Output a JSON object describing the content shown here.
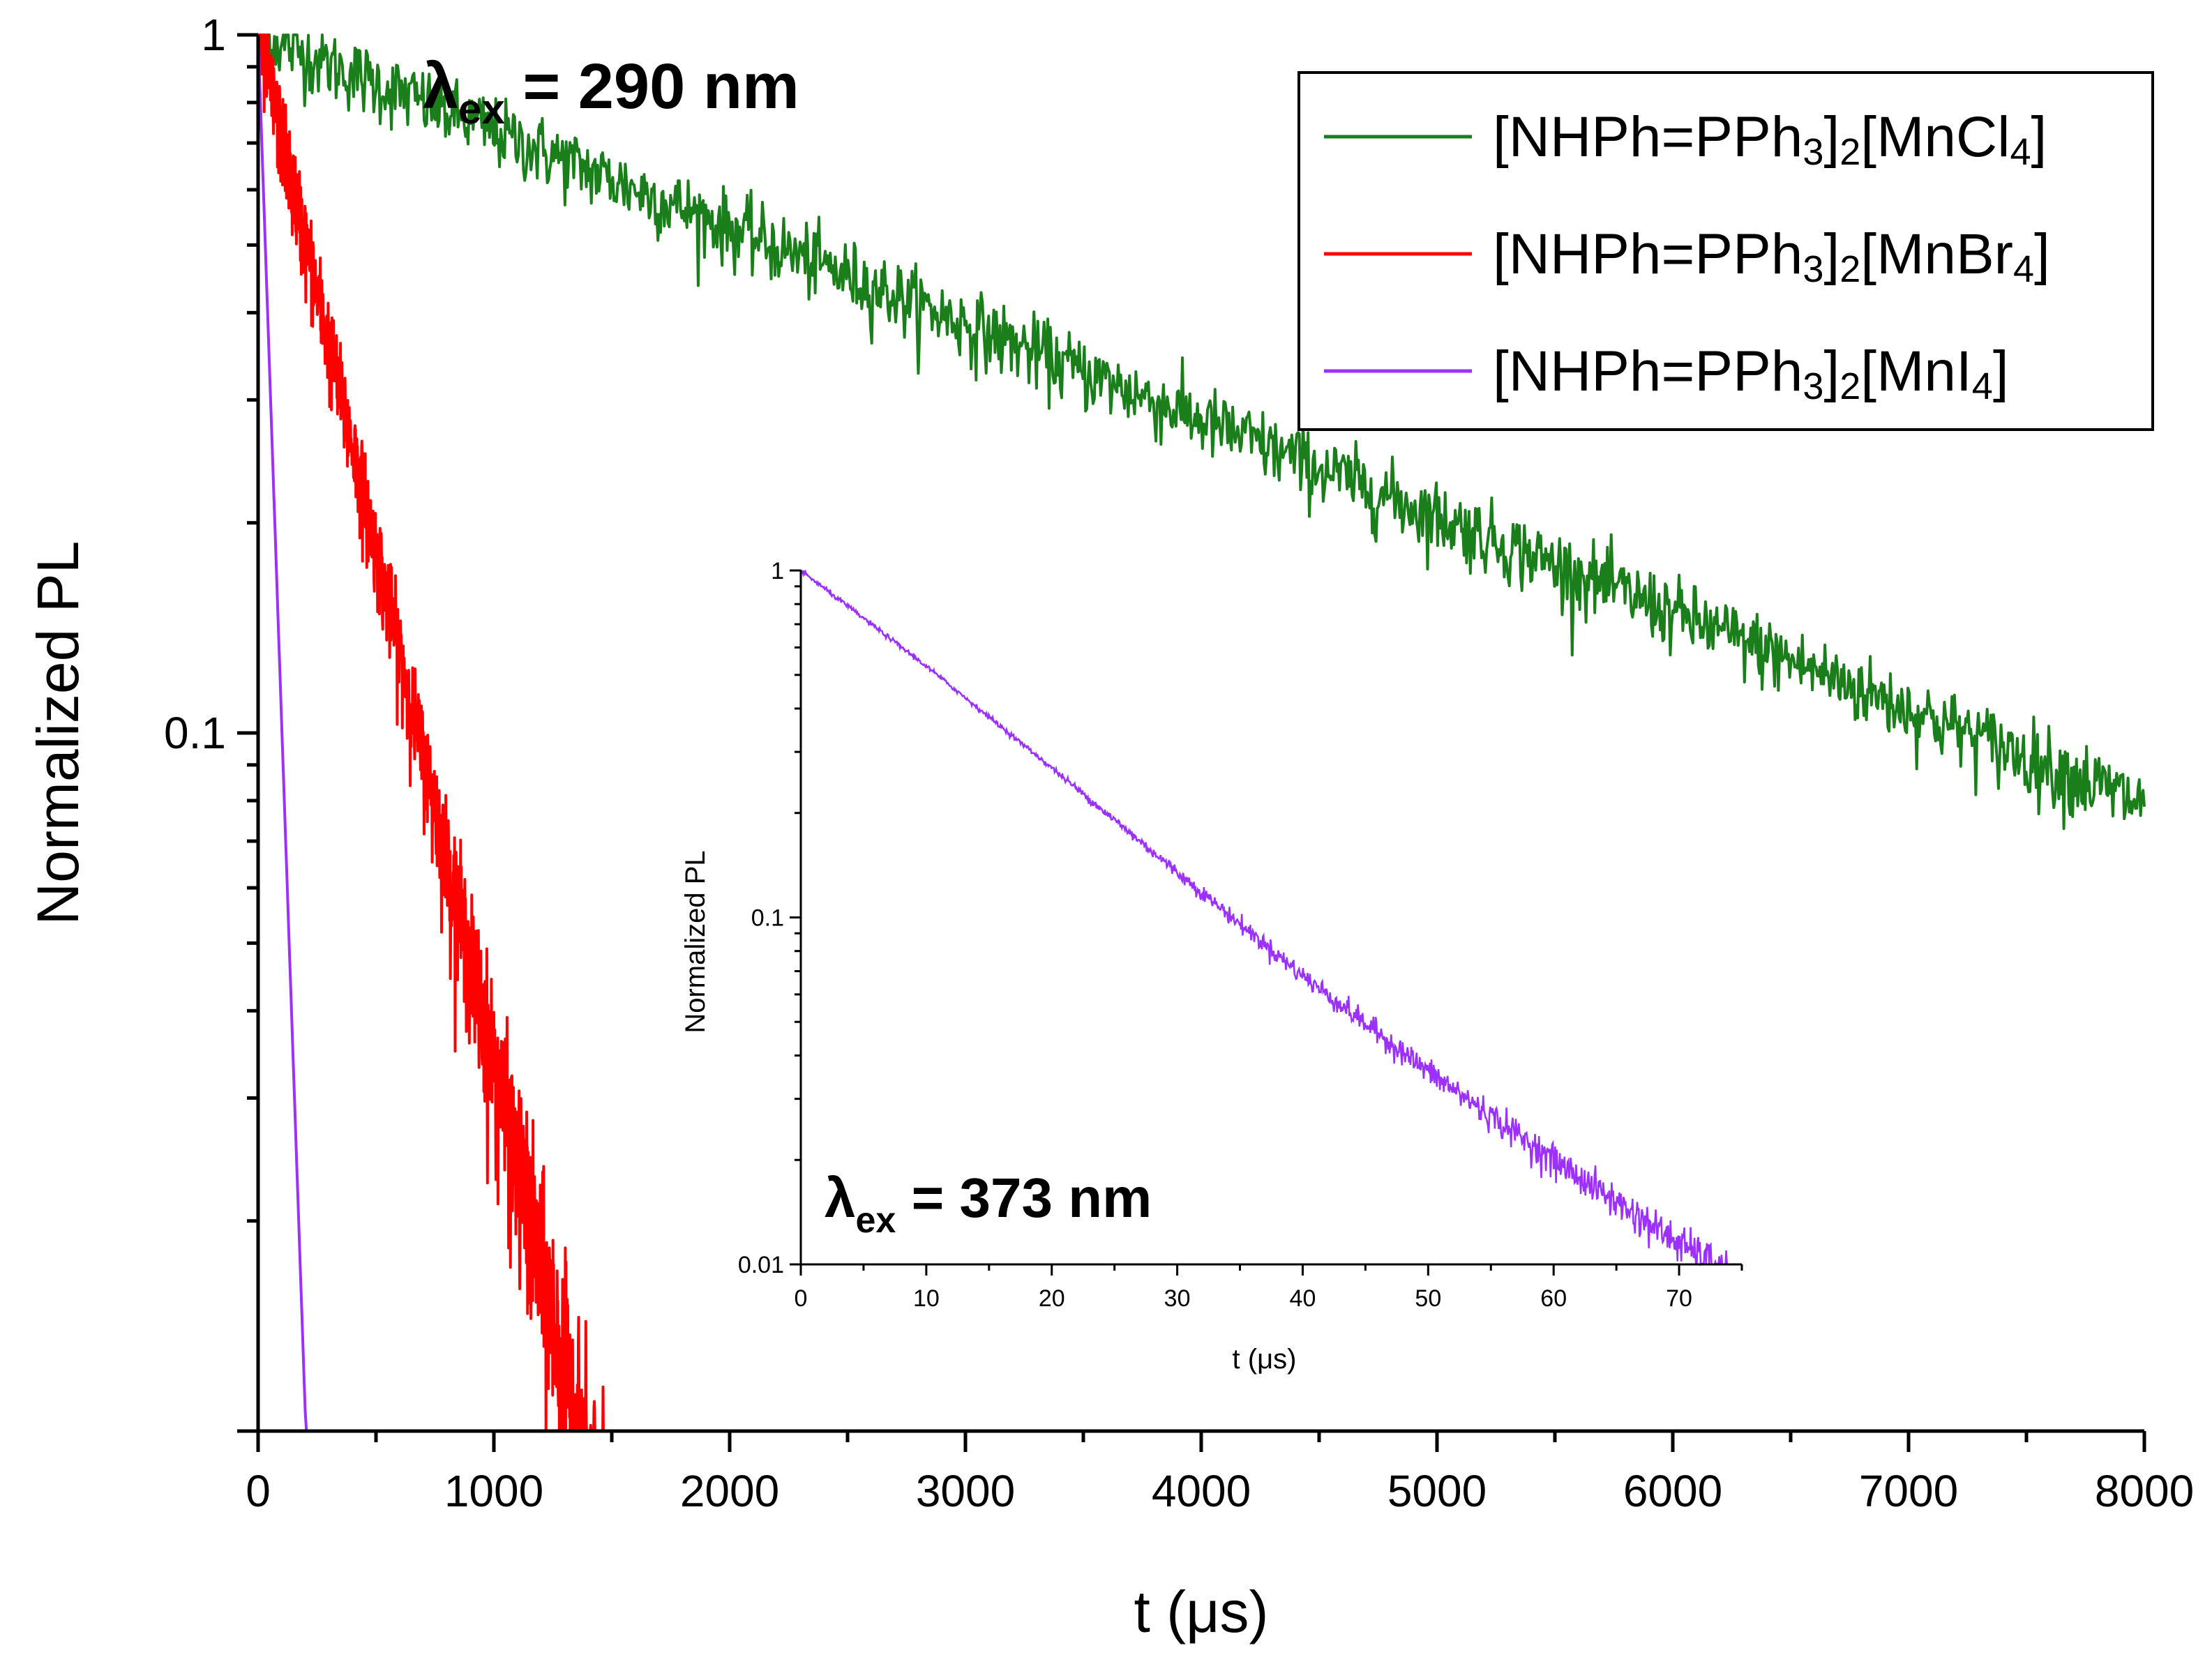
{
  "chart_data": [
    {
      "type": "line",
      "yscale": "log",
      "xlabel": "t (μs)",
      "ylabel": "Normalized PL",
      "xlim": [
        0,
        8000
      ],
      "ylim": [
        0.01,
        1
      ],
      "x_ticks": [
        0,
        1000,
        2000,
        3000,
        4000,
        5000,
        6000,
        7000,
        8000
      ],
      "x_tick_labels": [
        "0",
        "1000",
        "2000",
        "3000",
        "4000",
        "5000",
        "6000",
        "7000",
        "8000"
      ],
      "y_tick_labels": [
        {
          "value": 1,
          "label": "1"
        },
        {
          "value": 0.1,
          "label": "0.1"
        }
      ],
      "annotation": {
        "main": "λ",
        "sub": "ex",
        "rest": " = 290 nm"
      },
      "legend": {
        "placement": "top-right"
      },
      "series": [
        {
          "name": "[NHPh=PPh3]2[MnCl4]",
          "label_parts": [
            [
              "[NHPh=PPh",
              ""
            ],
            [
              "3",
              "sub"
            ],
            [
              "]",
              ""
            ],
            [
              "2",
              "sub"
            ],
            [
              "[MnCl",
              ""
            ],
            [
              "4",
              "sub"
            ],
            [
              "]",
              ""
            ]
          ],
          "color": "#1a7f1a",
          "decay_time_us": 3150,
          "noise": 0.06,
          "x_end": 8000
        },
        {
          "name": "[NHPh=PPh3]2[MnBr4]",
          "label_parts": [
            [
              "[NHPh=PPh",
              ""
            ],
            [
              "3",
              "sub"
            ],
            [
              "]",
              ""
            ],
            [
              "2",
              "sub"
            ],
            [
              "[MnBr",
              ""
            ],
            [
              "4",
              "sub"
            ],
            [
              "]",
              ""
            ]
          ],
          "color": "#ff0000",
          "decay_time_us": 295,
          "noise": 0.08,
          "x_end": 1920
        },
        {
          "name": "[NHPh=PPh3]2[MnI4]",
          "label_parts": [
            [
              "[NHPh=PPh",
              ""
            ],
            [
              "3",
              "sub"
            ],
            [
              "]",
              ""
            ],
            [
              "2",
              "sub"
            ],
            [
              "[MnI",
              ""
            ],
            [
              "4",
              "sub"
            ],
            [
              "]",
              ""
            ]
          ],
          "color": "#9b30ff",
          "decay_time_us": 44,
          "noise": 0.0,
          "x_end": 205
        }
      ]
    },
    {
      "type": "line",
      "yscale": "log",
      "role": "inset",
      "xlabel": "t (μs)",
      "ylabel": "Normalized PL",
      "xlim": [
        0,
        75
      ],
      "ylim": [
        0.01,
        1
      ],
      "x_ticks": [
        0,
        10,
        20,
        30,
        40,
        50,
        60,
        70
      ],
      "x_tick_labels": [
        "0",
        "10",
        "20",
        "30",
        "40",
        "50",
        "60",
        "70"
      ],
      "y_tick_labels": [
        {
          "value": 1,
          "label": "1"
        },
        {
          "value": 0.1,
          "label": "0.1"
        },
        {
          "value": 0.01,
          "label": "0.01"
        }
      ],
      "annotation": {
        "main": "λ",
        "sub": "ex",
        "rest": " = 373 nm"
      },
      "series": [
        {
          "name": "[NHPh=PPh3]2[MnI4]",
          "color": "#9b30ff",
          "points": [
            [
              0,
              1.0
            ],
            [
              10,
              0.53
            ],
            [
              20,
              0.27
            ],
            [
              30,
              0.135
            ],
            [
              40,
              0.068
            ],
            [
              50,
              0.036
            ],
            [
              60,
              0.02
            ],
            [
              70,
              0.0115
            ],
            [
              74,
              0.0095
            ]
          ],
          "noise": 0.05
        }
      ]
    }
  ]
}
